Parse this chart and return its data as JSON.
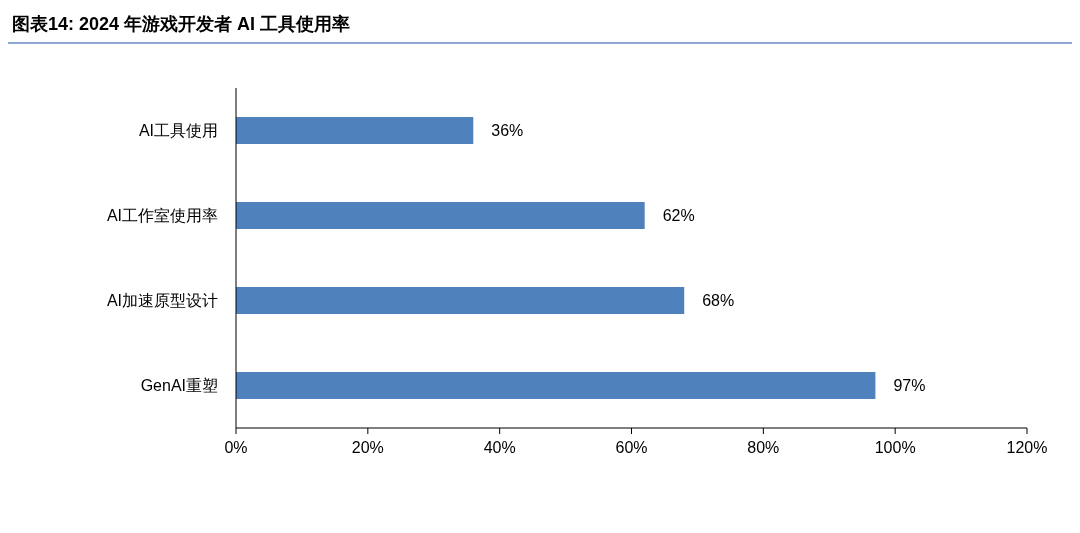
{
  "chart_data": {
    "type": "bar",
    "orientation": "horizontal",
    "title": "图表14:  2024 年游戏开发者 AI 工具使用率",
    "categories": [
      "AI工具使用",
      "AI工作室使用率",
      "AI加速原型设计",
      "GenAI重塑"
    ],
    "values": [
      36,
      62,
      68,
      97
    ],
    "color": "#4f81bd",
    "value_labels": [
      "36%",
      "62%",
      "68%",
      "97%"
    ],
    "xlim": [
      0,
      120
    ],
    "xticks": [
      {
        "value": 0,
        "label": "0%"
      },
      {
        "value": 20,
        "label": "20%"
      },
      {
        "value": 40,
        "label": "40%"
      },
      {
        "value": 60,
        "label": "60%"
      },
      {
        "value": 80,
        "label": "80%"
      },
      {
        "value": 100,
        "label": "100%"
      },
      {
        "value": 120,
        "label": "120%"
      }
    ],
    "grid": false
  }
}
